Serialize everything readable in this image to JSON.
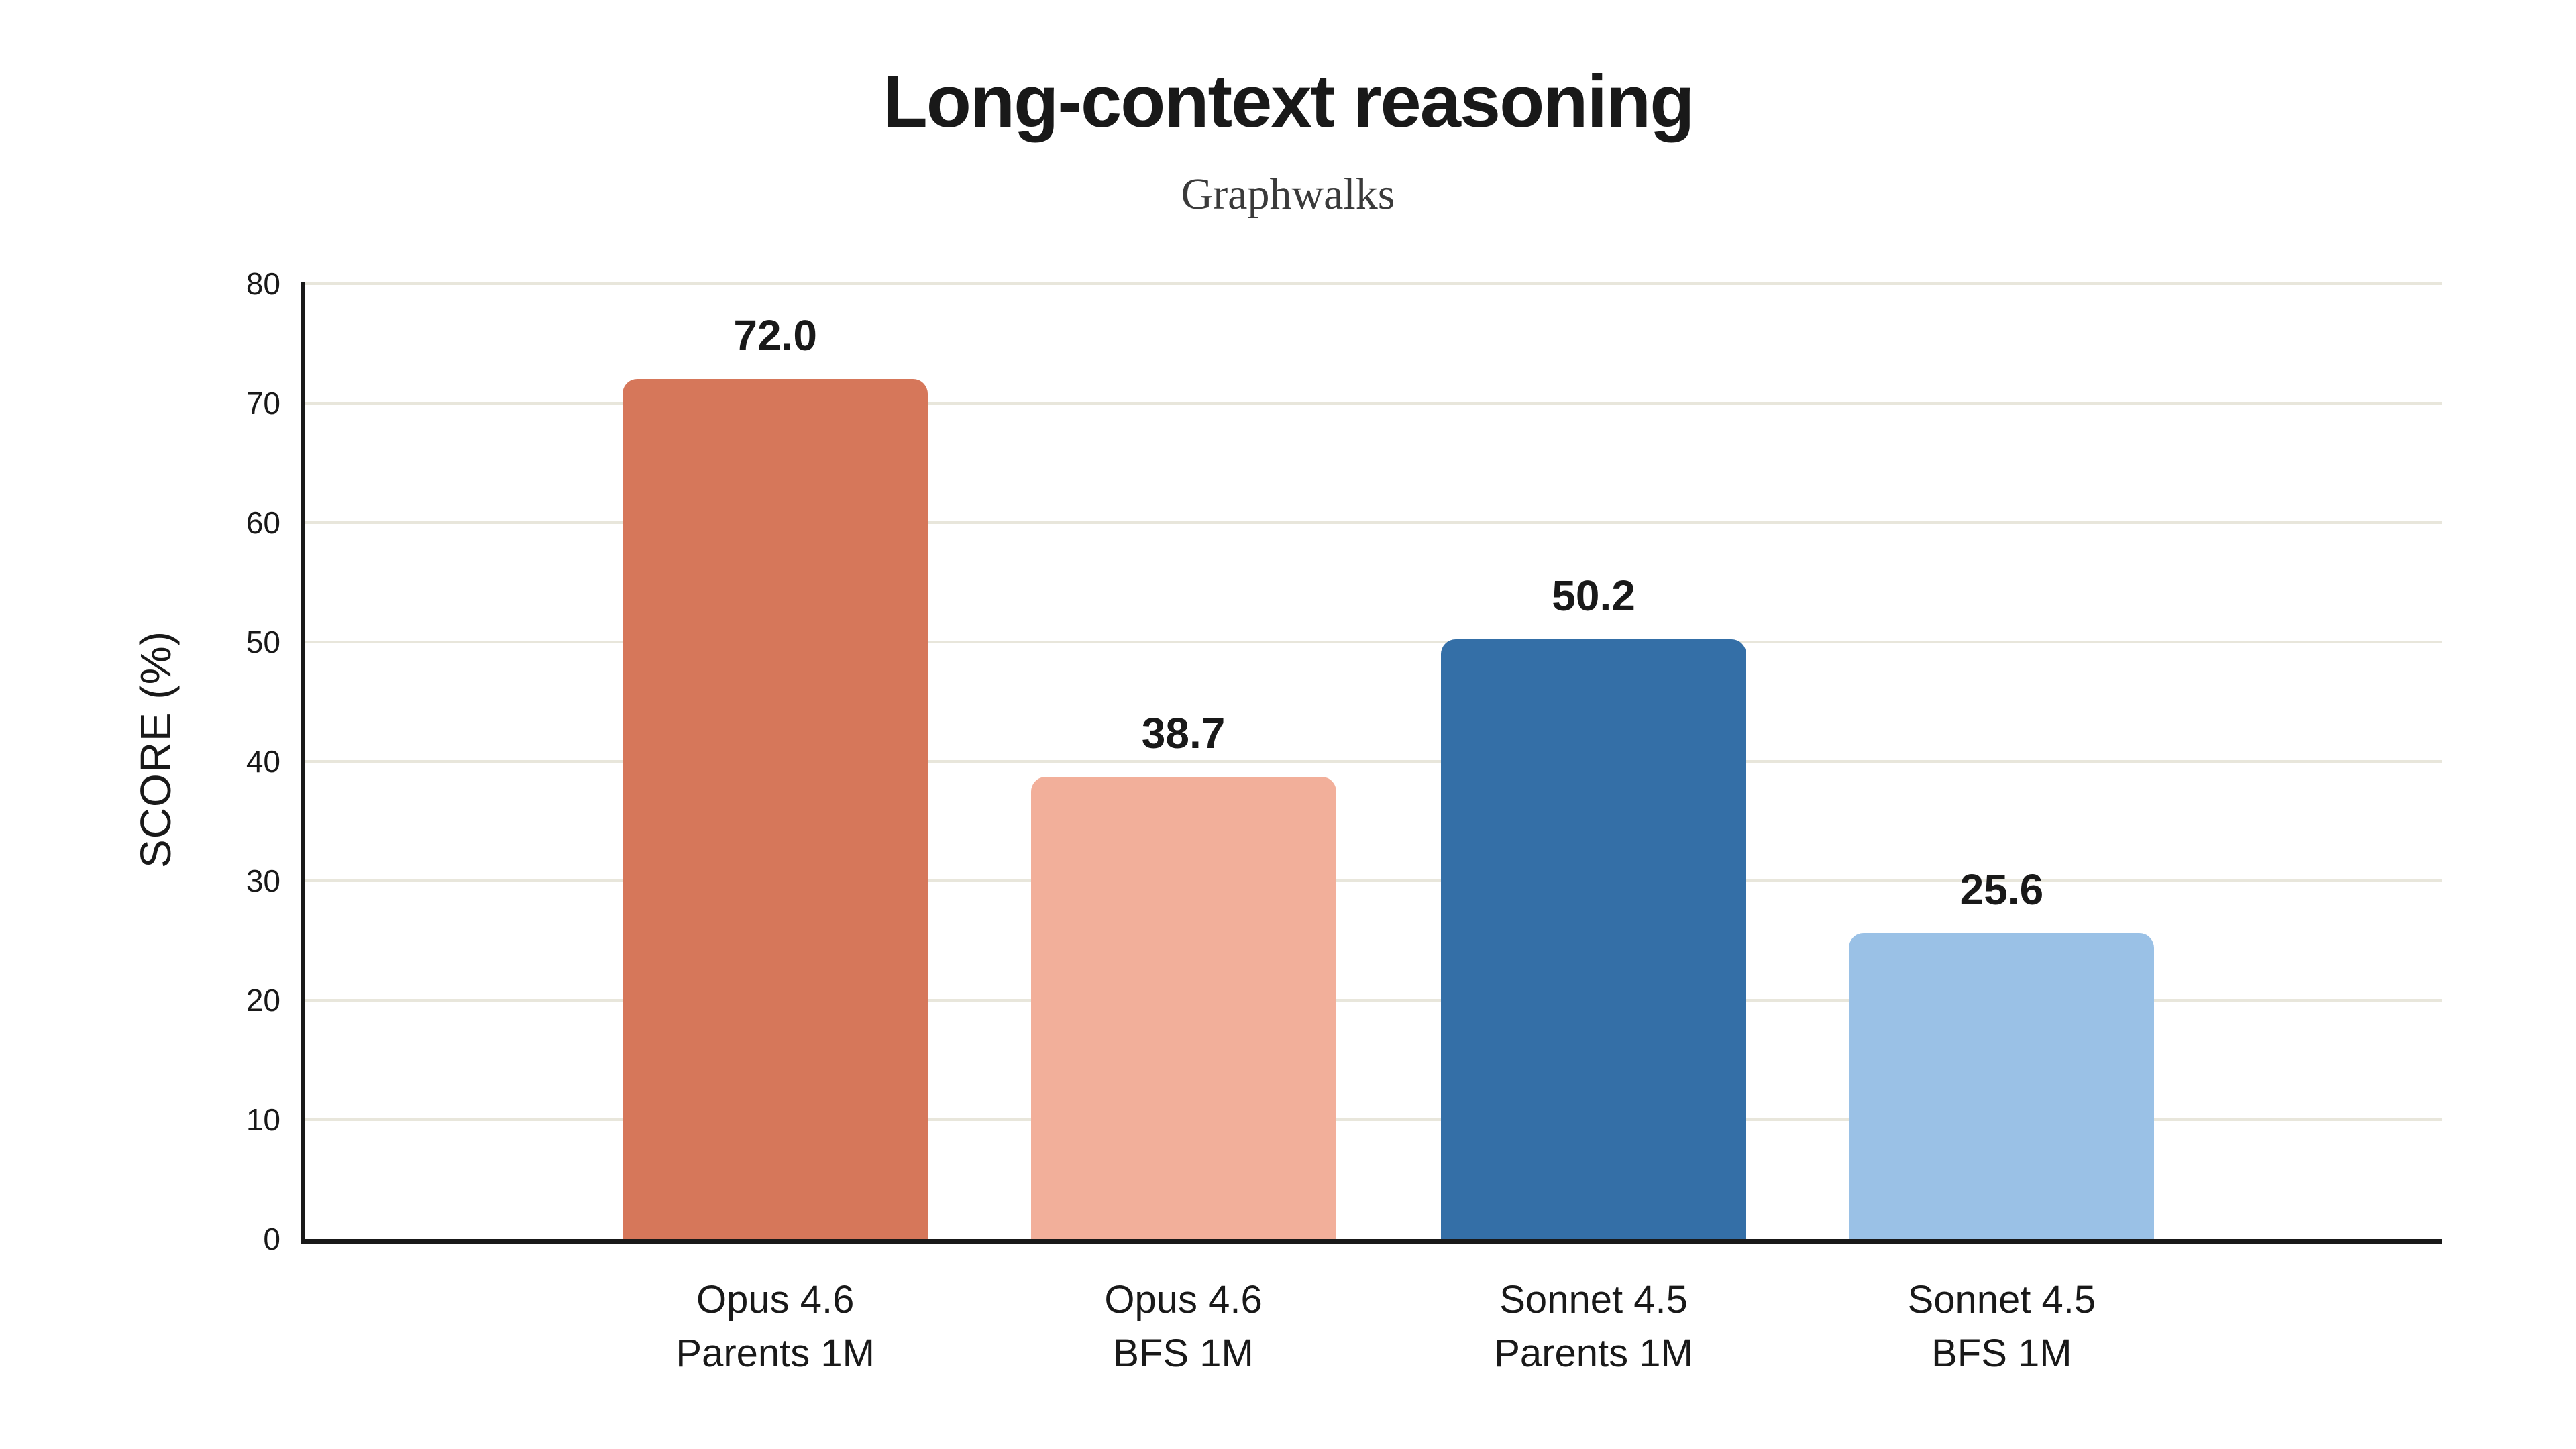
{
  "chart": {
    "title": "Long-context reasoning",
    "subtitle": "Graphwalks",
    "ylabel": "SCORE (%)"
  },
  "chart_data": {
    "type": "bar",
    "title": "Long-context reasoning",
    "subtitle": "Graphwalks",
    "ylabel": "SCORE (%)",
    "ylim": [
      0,
      80
    ],
    "yticks": [
      "0",
      "10",
      "20",
      "30",
      "40",
      "50",
      "60",
      "70",
      "80"
    ],
    "grid": true,
    "legend": false,
    "categories": [
      [
        "Opus 4.6",
        "Parents 1M"
      ],
      [
        "Opus 4.6",
        "BFS 1M"
      ],
      [
        "Sonnet 4.5",
        "Parents 1M"
      ],
      [
        "Sonnet 4.5",
        "BFS 1M"
      ]
    ],
    "values": [
      72.0,
      38.7,
      50.2,
      25.6
    ],
    "value_labels": [
      "72.0",
      "38.7",
      "50.2",
      "25.6"
    ],
    "bar_colors": [
      "#D6775A",
      "#F2AF9A",
      "#346FA7",
      "#9AC1E6"
    ]
  },
  "colors": {
    "background": "#ffffff",
    "grid": "#E8E6DB",
    "axis": "#191919",
    "text": "#191919",
    "subtitle_text": "#3a3a3a"
  }
}
